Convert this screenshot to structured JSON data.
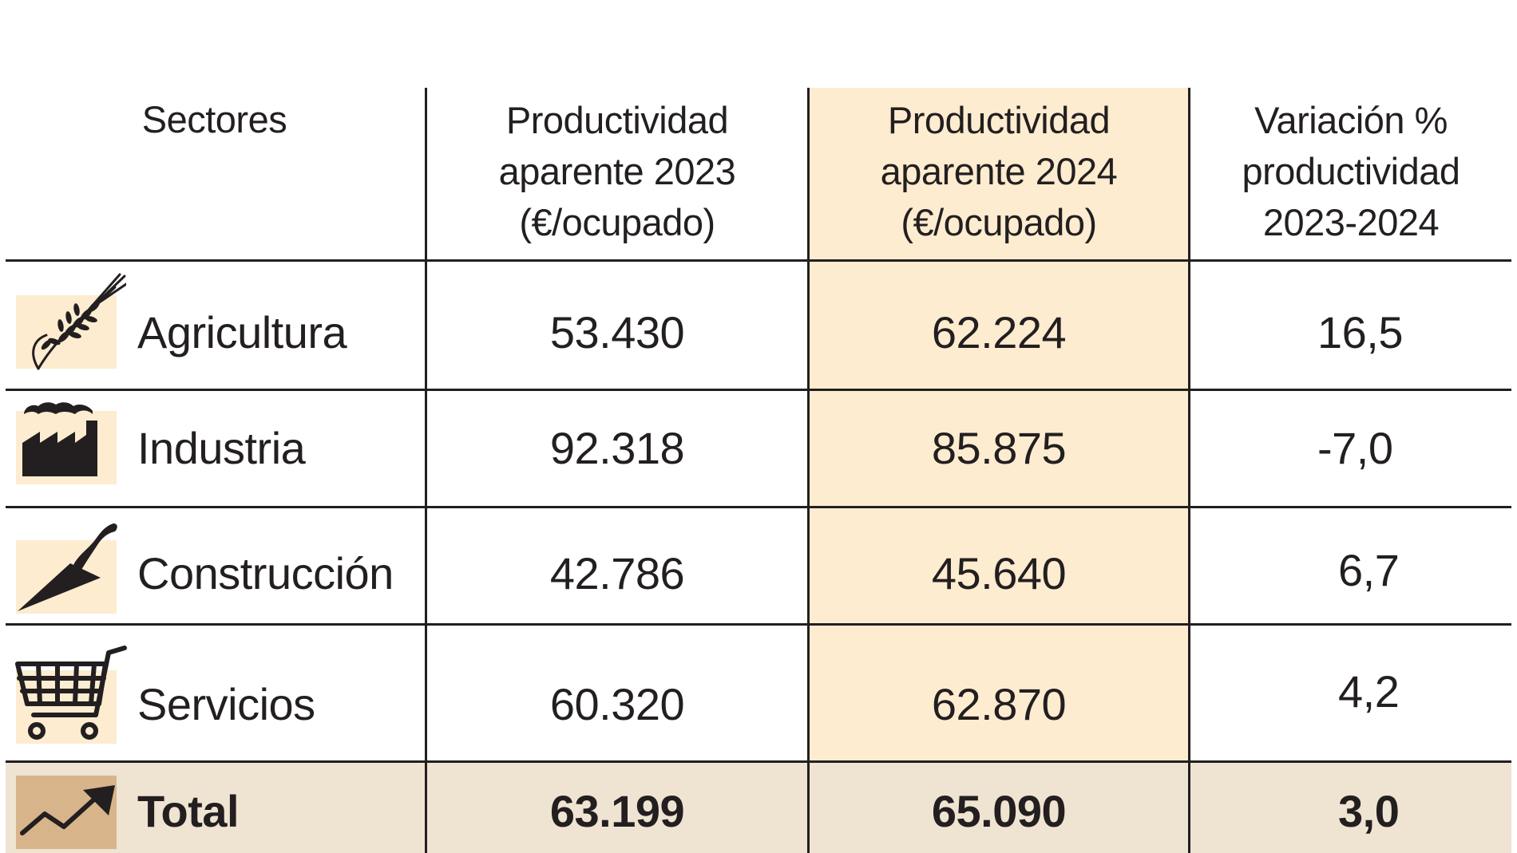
{
  "table": {
    "headers": {
      "sectores": "Sectores",
      "col2023": [
        "Productividad",
        "aparente 2023",
        "(€/ocupado)"
      ],
      "col2024": [
        "Productividad",
        "aparente 2024",
        "(€/ocupado)"
      ],
      "variacion": [
        "Variación %",
        "productividad",
        "2023-2024"
      ]
    },
    "rows": [
      {
        "sector": "Agricultura",
        "icon": "wheat-icon",
        "p2023": "53.430",
        "p2024": "62.224",
        "var": "16,5"
      },
      {
        "sector": "Industria",
        "icon": "factory-icon",
        "p2023": "92.318",
        "p2024": "85.875",
        "var": "-7,0"
      },
      {
        "sector": "Construcción",
        "icon": "trowel-icon",
        "p2023": "42.786",
        "p2024": "45.640",
        "var": "6,7"
      },
      {
        "sector": "Servicios",
        "icon": "shopping-cart-icon",
        "p2023": "60.320",
        "p2024": "62.870",
        "var": "4,2"
      }
    ],
    "total": {
      "sector": "Total",
      "icon": "trend-up-icon",
      "p2023": "63.199",
      "p2024": "65.090",
      "var": "3,0"
    }
  },
  "colors": {
    "highlight_column": "#fdecd0",
    "total_band": "#efe3d2",
    "icon_background": "#fdecd0",
    "total_icon_background": "#d8b48a",
    "text": "#231f20"
  }
}
